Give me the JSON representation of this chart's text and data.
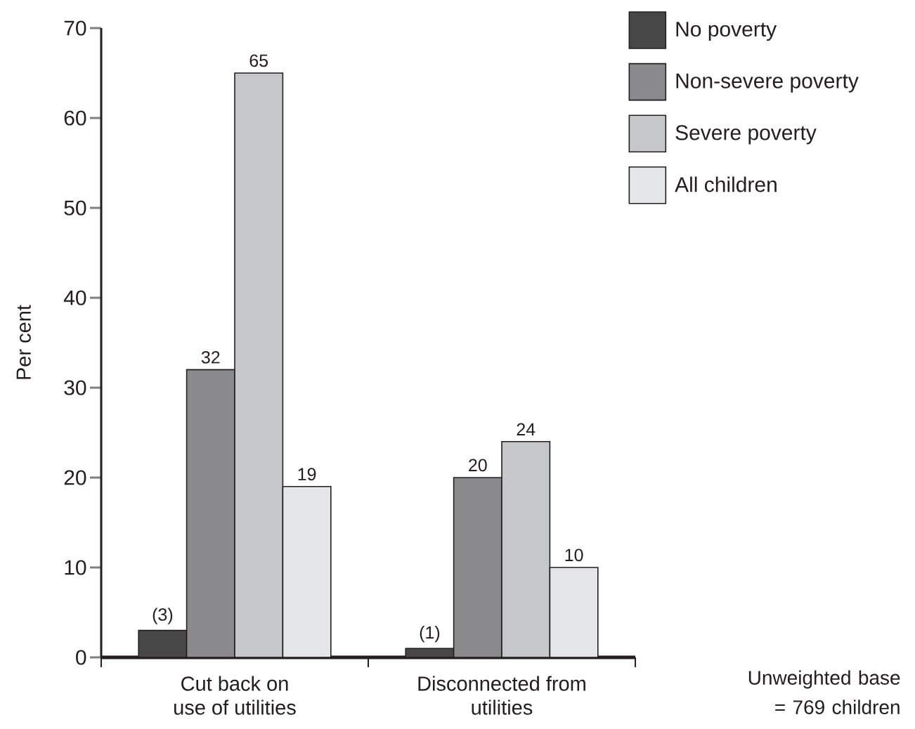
{
  "chart_data": {
    "type": "bar",
    "ylabel": "Per cent",
    "categories": [
      "Cut back on use of utilities",
      "Disconnected from utilities"
    ],
    "series": [
      {
        "name": "No poverty",
        "color": "#474747",
        "values": [
          3,
          1
        ],
        "value_labels": [
          "(3)",
          "(1)"
        ]
      },
      {
        "name": "Non-severe poverty",
        "color": "#8a8a8c",
        "values": [
          32,
          20
        ],
        "value_labels": [
          "32",
          "20"
        ]
      },
      {
        "name": "Severe poverty",
        "color": "#c6c7c9",
        "values": [
          65,
          24
        ],
        "value_labels": [
          "65",
          "24"
        ]
      },
      {
        "name": "All children",
        "color": "#e5e6e7",
        "values": [
          19,
          10
        ],
        "value_labels": [
          "19",
          "10"
        ]
      }
    ],
    "ylim": [
      0,
      70
    ],
    "yticks": [
      0,
      10,
      20,
      30,
      40,
      50,
      60,
      70
    ],
    "grid": false,
    "legend": "top right",
    "annotations": [
      "Unweighted base = 769 children"
    ]
  }
}
